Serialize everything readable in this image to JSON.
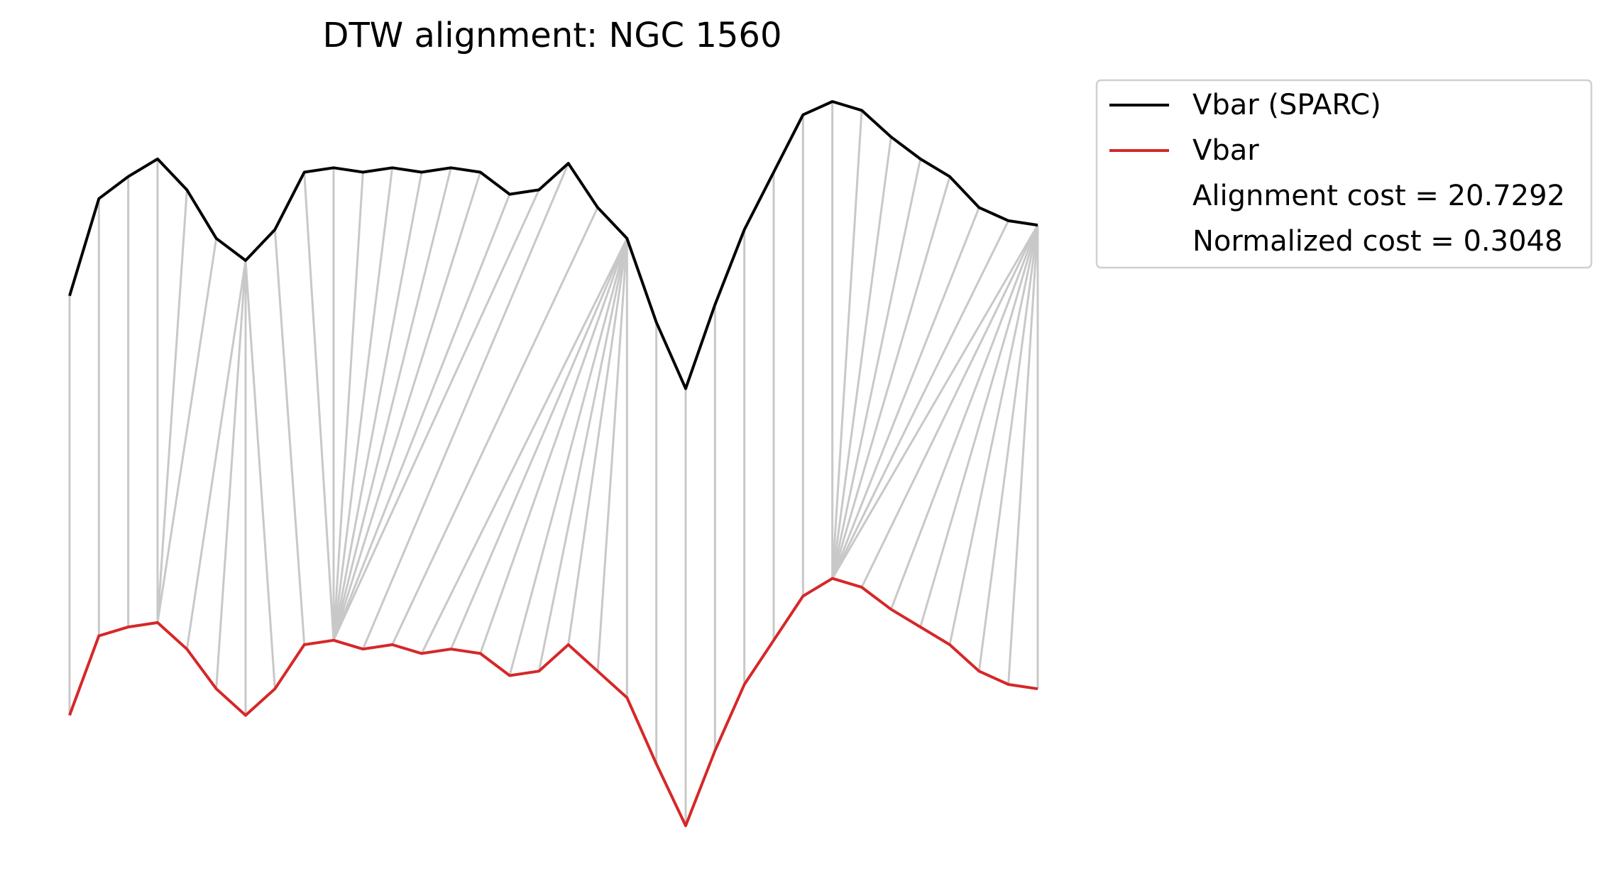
{
  "chart_data": {
    "type": "line",
    "title": "DTW alignment: NGC 1560",
    "xlabel": "",
    "ylabel": "",
    "axes_visible": false,
    "grid": false,
    "legend_position": "outside-upper-right",
    "series": [
      {
        "name": "Vbar (SPARC)",
        "color": "#000000",
        "values": [
          0.0,
          0.22,
          0.27,
          0.31,
          0.24,
          0.13,
          0.08,
          0.15,
          0.28,
          0.29,
          0.28,
          0.29,
          0.28,
          0.29,
          0.28,
          0.23,
          0.24,
          0.3,
          0.2,
          0.13,
          -0.06,
          -0.21,
          -0.02,
          0.15,
          0.28,
          0.41,
          0.44,
          0.42,
          0.36,
          0.31,
          0.27,
          0.2,
          0.17,
          0.16
        ]
      },
      {
        "name": "Vbar",
        "color": "#d62728",
        "values": [
          -0.95,
          -0.77,
          -0.75,
          -0.74,
          -0.8,
          -0.89,
          -0.95,
          -0.89,
          -0.79,
          -0.78,
          -0.8,
          -0.79,
          -0.81,
          -0.8,
          -0.81,
          -0.86,
          -0.85,
          -0.79,
          -0.85,
          -0.91,
          -1.06,
          -1.2,
          -1.03,
          -0.88,
          -0.78,
          -0.68,
          -0.64,
          -0.66,
          -0.71,
          -0.75,
          -0.79,
          -0.85,
          -0.88,
          -0.89
        ]
      }
    ],
    "alignment_pairs": [
      [
        0,
        0
      ],
      [
        1,
        1
      ],
      [
        2,
        2
      ],
      [
        3,
        3
      ],
      [
        4,
        3
      ],
      [
        5,
        3
      ],
      [
        6,
        4
      ],
      [
        6,
        5
      ],
      [
        6,
        6
      ],
      [
        6,
        7
      ],
      [
        7,
        8
      ],
      [
        8,
        9
      ],
      [
        9,
        9
      ],
      [
        10,
        9
      ],
      [
        11,
        9
      ],
      [
        12,
        9
      ],
      [
        13,
        9
      ],
      [
        14,
        9
      ],
      [
        15,
        9
      ],
      [
        16,
        9
      ],
      [
        17,
        10
      ],
      [
        18,
        11
      ],
      [
        19,
        12
      ],
      [
        19,
        13
      ],
      [
        19,
        14
      ],
      [
        19,
        15
      ],
      [
        19,
        16
      ],
      [
        19,
        17
      ],
      [
        19,
        18
      ],
      [
        19,
        19
      ],
      [
        20,
        20
      ],
      [
        21,
        21
      ],
      [
        22,
        22
      ],
      [
        23,
        23
      ],
      [
        24,
        24
      ],
      [
        25,
        25
      ],
      [
        26,
        26
      ],
      [
        27,
        26
      ],
      [
        28,
        26
      ],
      [
        29,
        26
      ],
      [
        30,
        26
      ],
      [
        31,
        26
      ],
      [
        32,
        26
      ],
      [
        33,
        26
      ],
      [
        33,
        27
      ],
      [
        33,
        28
      ],
      [
        33,
        29
      ],
      [
        33,
        30
      ],
      [
        33,
        31
      ],
      [
        33,
        32
      ],
      [
        33,
        33
      ]
    ],
    "alignment_color": "#c8c8c8",
    "legend_extra": [
      "Alignment cost = 20.7292",
      "Normalized cost = 0.3048"
    ]
  }
}
